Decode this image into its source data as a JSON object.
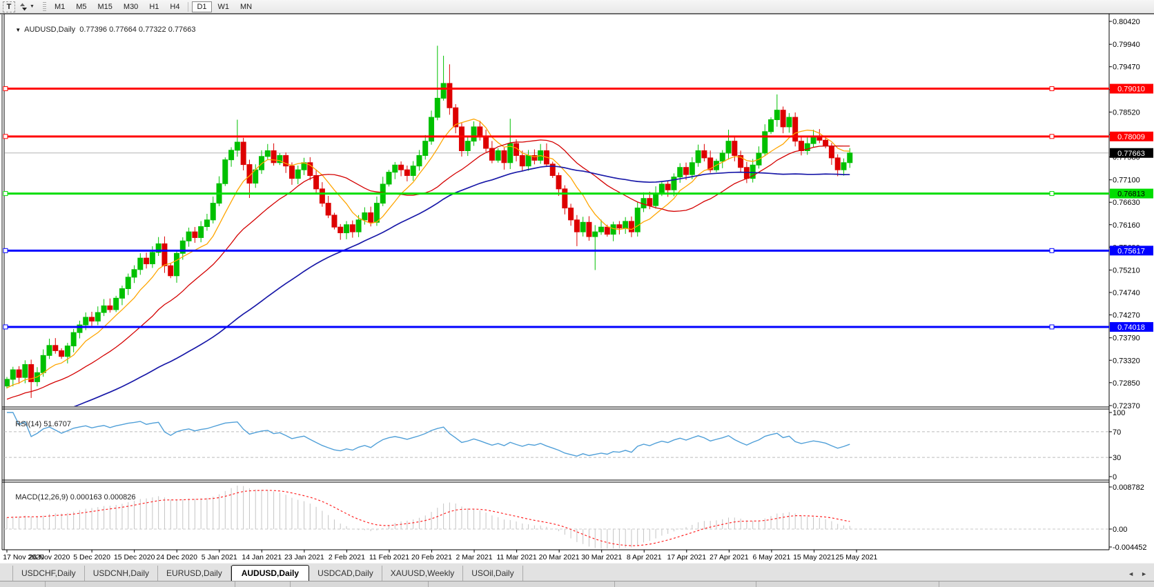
{
  "toolbar": {
    "t_button": "T",
    "timeframes": [
      "M1",
      "M5",
      "M15",
      "M30",
      "H1",
      "H4",
      "D1",
      "W1",
      "MN"
    ],
    "active_timeframe": "D1"
  },
  "symbol_header": {
    "dropdown": "▼",
    "name": "AUDUSD,Daily",
    "open": "0.77396",
    "high": "0.77664",
    "low": "0.77322",
    "close": "0.77663"
  },
  "rsi_label": {
    "text": "RSI(14)",
    "value": "51.6707"
  },
  "macd_label": {
    "text": "MACD(12,26,9)",
    "values": "0.000163 0.000826"
  },
  "tabbar": {
    "tabs": [
      "USDCHF,Daily",
      "USDCNH,Daily",
      "EURUSD,Daily",
      "AUDUSD,Daily",
      "USDCAD,Daily",
      "XAUUSD,Weekly",
      "USOil,Daily"
    ],
    "active": "AUDUSD,Daily",
    "left_arrow": "◄",
    "right_arrow": "►"
  },
  "chart_data": {
    "type": "candlestick",
    "symbol": "AUDUSD",
    "timeframe": "Daily",
    "ohlc_current": {
      "open": 0.77396,
      "high": 0.77664,
      "low": 0.77322,
      "close": 0.77663
    },
    "price_ticks": [
      "0.80420",
      "0.79940",
      "0.79470",
      "0.78990",
      "0.78520",
      "0.78050",
      "0.77580",
      "0.77100",
      "0.76630",
      "0.76160",
      "0.75690",
      "0.75210",
      "0.74740",
      "0.74270",
      "0.73790",
      "0.73320",
      "0.72850",
      "0.72370"
    ],
    "x_dates": [
      "17 Nov 2020",
      "26 Nov 2020",
      "5 Dec 2020",
      "15 Dec 2020",
      "24 Dec 2020",
      "5 Jan 2021",
      "14 Jan 2021",
      "23 Jan 2021",
      "2 Feb 2021",
      "11 Feb 2021",
      "20 Feb 2021",
      "2 Mar 2021",
      "11 Mar 2021",
      "20 Mar 2021",
      "30 Mar 2021",
      "8 Apr 2021",
      "17 Apr 2021",
      "27 Apr 2021",
      "6 May 2021",
      "15 May 2021",
      "25 May 2021"
    ],
    "open_first": 0.7278,
    "closes": [
      0.7292,
      0.7312,
      0.7296,
      0.7323,
      0.7287,
      0.7306,
      0.7342,
      0.7363,
      0.7352,
      0.734,
      0.7362,
      0.739,
      0.7406,
      0.7422,
      0.7414,
      0.7432,
      0.7446,
      0.7438,
      0.7462,
      0.7482,
      0.7506,
      0.7522,
      0.7546,
      0.7534,
      0.7558,
      0.7576,
      0.753,
      0.7509,
      0.7556,
      0.7582,
      0.7601,
      0.7589,
      0.7612,
      0.7626,
      0.7661,
      0.7702,
      0.7752,
      0.7772,
      0.7789,
      0.7742,
      0.7703,
      0.7731,
      0.7759,
      0.7771,
      0.7746,
      0.7761,
      0.7739,
      0.7713,
      0.7731,
      0.7746,
      0.7719,
      0.7691,
      0.7661,
      0.7636,
      0.7611,
      0.7599,
      0.7616,
      0.7601,
      0.7626,
      0.7641,
      0.7621,
      0.7661,
      0.7701,
      0.7726,
      0.7741,
      0.7731,
      0.7719,
      0.7739,
      0.7761,
      0.7791,
      0.7841,
      0.7881,
      0.7912,
      0.7861,
      0.7821,
      0.7771,
      0.7791,
      0.7821,
      0.7801,
      0.7776,
      0.7751,
      0.7771,
      0.7746,
      0.7786,
      0.7761,
      0.7739,
      0.7761,
      0.7751,
      0.7771,
      0.7743,
      0.7719,
      0.7691,
      0.7651,
      0.7626,
      0.7601,
      0.7621,
      0.7591,
      0.7601,
      0.7611,
      0.7596,
      0.7616,
      0.7609,
      0.7623,
      0.7601,
      0.7651,
      0.7671,
      0.7656,
      0.7681,
      0.7701,
      0.7689,
      0.7716,
      0.7736,
      0.7721,
      0.7746,
      0.7771,
      0.7756,
      0.7731,
      0.7749,
      0.7766,
      0.7791,
      0.7761,
      0.7736,
      0.7713,
      0.7741,
      0.7766,
      0.7811,
      0.7836,
      0.7856,
      0.7821,
      0.7841,
      0.7791,
      0.7771,
      0.7786,
      0.7801,
      0.7793,
      0.7781,
      0.7756,
      0.7731,
      0.7746,
      0.77663
    ],
    "special_wicks": {
      "4": {
        "d": 0.0034
      },
      "26": {
        "d": 0.0015
      },
      "38": {
        "u": 0.0047
      },
      "40": {
        "d": 0.0031
      },
      "71": {
        "u": 0.011
      },
      "72": {
        "u": 0.0058
      },
      "73": {
        "u": 0.004
      },
      "83": {
        "u": 0.0052
      },
      "94": {
        "d": 0.003
      },
      "97": {
        "d": 0.007
      },
      "119": {
        "u": 0.0024
      },
      "127": {
        "u": 0.0033
      }
    },
    "ma_periods": [
      8,
      21,
      55
    ],
    "ma_seed": {
      "start": 0.709,
      "end": 0.7282,
      "count": 55
    },
    "hlines": [
      {
        "value": 0.7901,
        "label": "0.79010",
        "color": "#FF0000",
        "text": "#FFFFFF"
      },
      {
        "value": 0.78009,
        "label": "0.78009",
        "color": "#FF0000",
        "text": "#FFFFFF"
      },
      {
        "value": 0.76813,
        "label": "0.76813",
        "color": "#00DD00",
        "text": "#000000"
      },
      {
        "value": 0.75617,
        "label": "0.75617",
        "color": "#0000FF",
        "text": "#FFFFFF"
      },
      {
        "value": 0.74018,
        "label": "0.74018",
        "color": "#0000FF",
        "text": "#FFFFFF"
      }
    ],
    "current_price": {
      "value": 0.77663,
      "label": "0.77663",
      "line": "#B4B4B4",
      "badge": "#000000",
      "text": "#FFFFFF"
    },
    "rsi": {
      "period": 14,
      "current": 51.6707,
      "levels": [
        70,
        30
      ],
      "axis": [
        "100",
        "70",
        "30",
        "0"
      ]
    },
    "macd": {
      "fast": 12,
      "slow": 26,
      "signal": 9,
      "current_main": 0.000163,
      "current_signal": 0.000826,
      "axis": [
        "0.008782",
        "0.00",
        "-0.004452"
      ]
    },
    "colors": {
      "bull": "#00C000",
      "bear": "#DD0000",
      "ma_fast": "#FFA500",
      "ma_mid": "#D40000",
      "ma_slow": "#1818A8",
      "rsi_line": "#4F9FD8",
      "level_dash": "#BBBBBB",
      "macd_hist": "#C4C4C4",
      "macd_signal": "#FF2222",
      "panel_border": "#000000"
    }
  }
}
